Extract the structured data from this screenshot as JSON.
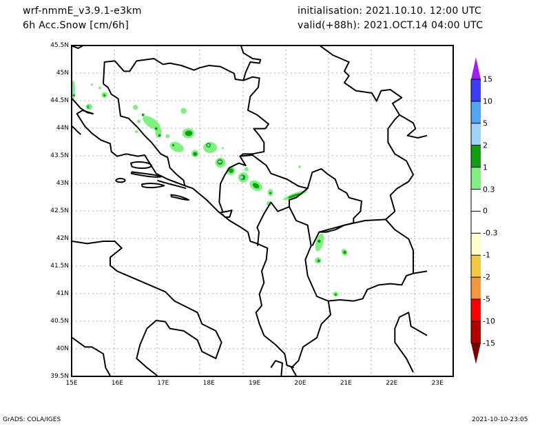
{
  "header": {
    "model": "wrf-nmmE_v3.9.1-e3km",
    "variable": "6h Acc.Snow [cm/6h]",
    "initialisation": "initialisation: 2021.10.10.  12:00 UTC",
    "valid": "valid(+88h): 2021.OCT.14 04:00 UTC"
  },
  "map": {
    "lat_labels": [
      "45.5N",
      "45N",
      "44.5N",
      "44N",
      "43.5N",
      "43N",
      "42.5N",
      "42N",
      "41.5N",
      "41N",
      "40.5N",
      "40N",
      "39.5N"
    ],
    "lon_labels": [
      "15E",
      "16E",
      "17E",
      "18E",
      "19E",
      "20E",
      "21E",
      "22E",
      "23E"
    ]
  },
  "colorbar": {
    "labels": [
      "15",
      "10",
      "5",
      "2",
      "1",
      "0.3",
      "0",
      "-0.3",
      "-1",
      "-2",
      "-5",
      "-10",
      "-15"
    ],
    "colors": [
      "#a020f0",
      "#3c3cff",
      "#50a5f5",
      "#a0d2fa",
      "#10a010",
      "#80f080",
      "#ffffff",
      "#ffffff",
      "#ffffc8",
      "#f5c841",
      "#f5963c",
      "#ff0000",
      "#b40000",
      "#780000"
    ]
  },
  "footer": {
    "left": "GrADS: COLA/IGES",
    "right": "2021-10-10-23:05"
  }
}
